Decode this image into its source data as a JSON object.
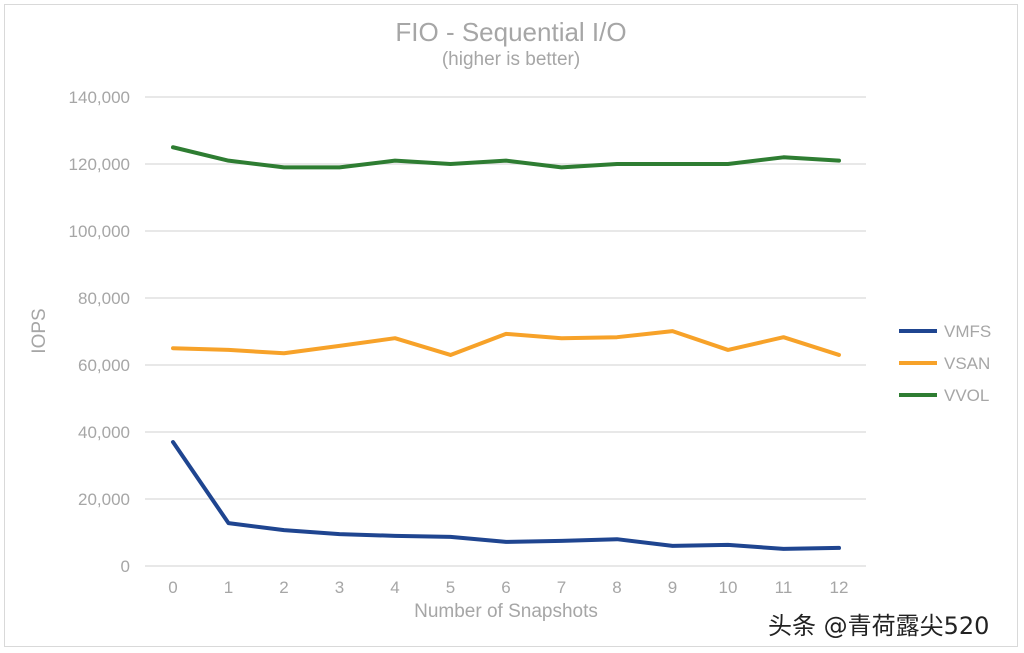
{
  "chart_data": {
    "type": "line",
    "title": "FIO - Sequential I/O",
    "subtitle": "(higher is better)",
    "xlabel": "Number of Snapshots",
    "ylabel": "IOPS",
    "x": [
      0,
      1,
      2,
      3,
      4,
      5,
      6,
      7,
      8,
      9,
      10,
      11,
      12
    ],
    "ylim": [
      0,
      140000
    ],
    "yticks": [
      0,
      20000,
      40000,
      60000,
      80000,
      100000,
      120000,
      140000
    ],
    "ytick_labels": [
      "0",
      "20,000",
      "40,000",
      "60,000",
      "80,000",
      "100,000",
      "120,000",
      "140,000"
    ],
    "grid": true,
    "legend_position": "right",
    "series": [
      {
        "name": "VMFS",
        "color": "#1f4590",
        "values": [
          37000,
          12800,
          10700,
          9500,
          9000,
          8700,
          7200,
          7500,
          8000,
          6000,
          6300,
          5100,
          5400
        ]
      },
      {
        "name": "VSAN",
        "color": "#f7a229",
        "values": [
          65000,
          64500,
          63500,
          65700,
          68000,
          63000,
          69300,
          68000,
          68300,
          70100,
          64500,
          68300,
          63000
        ]
      },
      {
        "name": "VVOL",
        "color": "#2e7d32",
        "values": [
          125000,
          121000,
          119000,
          119000,
          121000,
          120000,
          121000,
          119000,
          120000,
          120000,
          120000,
          122000,
          121000
        ]
      }
    ]
  },
  "watermark": "头条 @青荷露尖520"
}
